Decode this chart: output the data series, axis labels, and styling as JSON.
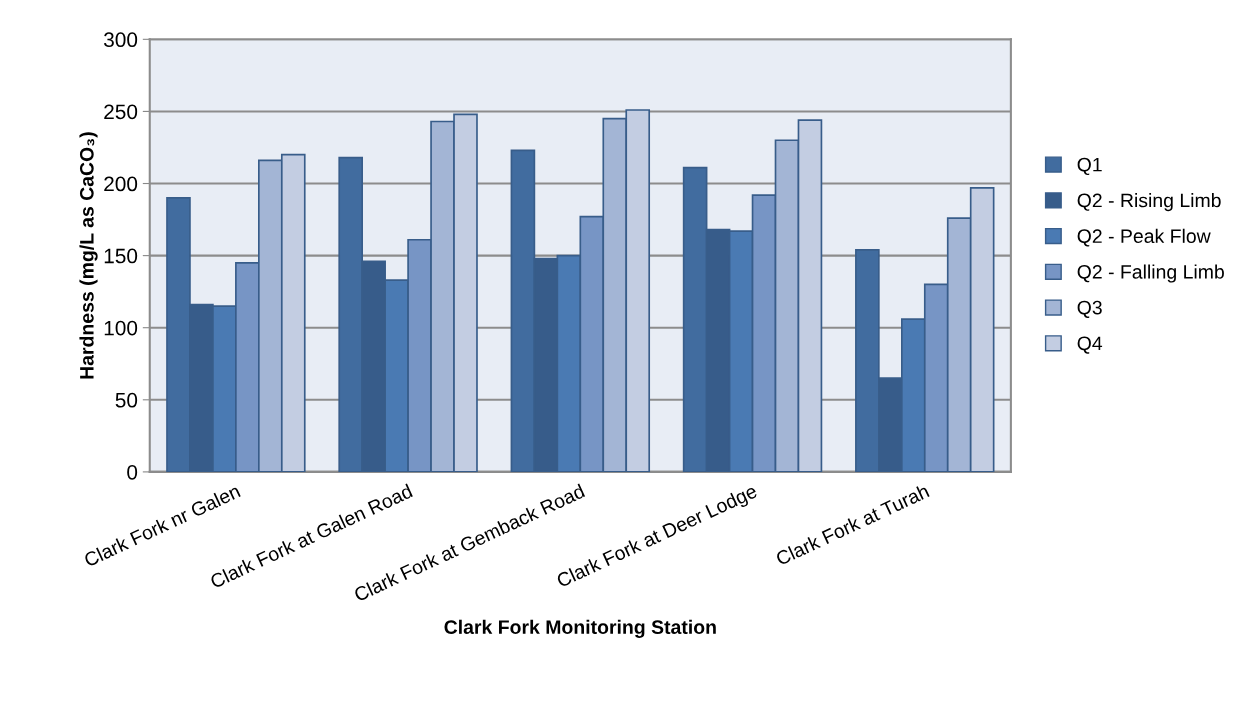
{
  "chart_data": {
    "type": "bar",
    "xlabel": "Clark Fork Monitoring Station",
    "ylabel": "Hardness (mg/L as CaCO₃)",
    "categories": [
      "Clark Fork nr Galen",
      "Clark Fork at Galen Road",
      "Clark Fork at Gemback Road",
      "Clark Fork at Deer Lodge",
      "Clark Fork at Turah"
    ],
    "series": [
      {
        "name": "Q1",
        "color": "#416c9f",
        "values": [
          190,
          218,
          223,
          211,
          154
        ]
      },
      {
        "name": "Q2 - Rising Limb",
        "color": "#375c8a",
        "values": [
          116,
          146,
          148,
          168,
          65
        ]
      },
      {
        "name": "Q2 - Peak Flow",
        "color": "#4a7ab3",
        "values": [
          115,
          133,
          150,
          167,
          106
        ]
      },
      {
        "name": "Q2 - Falling Limb",
        "color": "#7795c5",
        "values": [
          145,
          161,
          177,
          192,
          130
        ]
      },
      {
        "name": "Q3",
        "color": "#a3b5d5",
        "values": [
          216,
          243,
          245,
          230,
          176
        ]
      },
      {
        "name": "Q4",
        "color": "#c3cde2",
        "values": [
          220,
          248,
          251,
          244,
          197
        ]
      }
    ],
    "ylim": [
      0,
      300
    ],
    "yticks": [
      0,
      50,
      100,
      150,
      200,
      250,
      300
    ],
    "grid": "y",
    "legend": "right"
  }
}
